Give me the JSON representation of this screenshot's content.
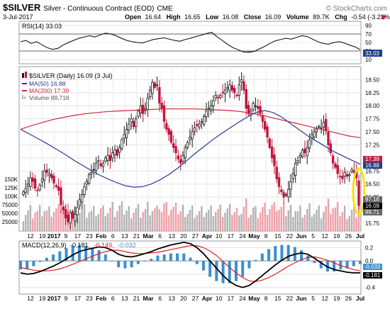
{
  "header": {
    "symbol": "$SILVER",
    "name": "Silver - Continuous Contract (EOD)",
    "exchange": "CME",
    "watermark": "© StockCharts.com",
    "date": "3-Jul-2017",
    "open_label": "Open",
    "open": "16.64",
    "high_label": "High",
    "high": "16.65",
    "low_label": "Low",
    "low": "16.08",
    "close_label": "Close",
    "close": "16.09",
    "volume_label": "Volume",
    "volume": "89.7K",
    "chg_label": "Chg",
    "chg": "-0.54 (-3.22%)"
  },
  "legend": {
    "rsi": "RSI(14) 33.03",
    "price": "$SILVER (Daily) 16.09 (3 Jul)",
    "ma50": "MA(50) 16.88",
    "ma200": "MA(200) 17.39",
    "volume": "Volume 89,716",
    "macd_a": "MACD(12,26,9)",
    "macd_b": "-0.181,",
    "macd_c": "-0.149,",
    "macd_d": "-0.032"
  },
  "colors": {
    "up": "#1a1a1a",
    "down": "#c4143c",
    "ma50": "#2a3a8f",
    "ma200": "#cc2a3a",
    "vol_up": "#b3b3b3",
    "vol_down": "#f0a0a8",
    "highlight": "#f2e418",
    "macd_line": "#000000",
    "signal_line": "#e02020",
    "histogram": "#3a8fd0",
    "rsi_dip": "#8b3a3a",
    "badge_blue": "#1e3f8a",
    "badge_red": "#c0203a",
    "badge_gray": "#666666"
  },
  "chart_data": {
    "type": "candlestick",
    "title": "$SILVER Silver - Continuous Contract (EOD) CME",
    "x_labels": [
      "12",
      "19",
      "2017",
      "9",
      "17",
      "23",
      "Feb",
      "6",
      "13",
      "21",
      "Mar",
      "6",
      "13",
      "20",
      "27",
      "Apr",
      "10",
      "17",
      "24",
      "May",
      "8",
      "15",
      "22",
      "Jun",
      "5",
      "12",
      "19",
      "26",
      "Jul"
    ],
    "price_ticks": [
      15.75,
      16.25,
      16.5,
      16.75,
      17.0,
      17.25,
      17.5,
      17.75,
      18.0,
      18.25,
      18.5
    ],
    "price_ylim": [
      15.6,
      18.75
    ],
    "volume_ticks": [
      "25000",
      "50000",
      "75000",
      "100K",
      "125K",
      "150K"
    ],
    "rsi_ticks": [
      10,
      30,
      50,
      70,
      90
    ],
    "macd_ticks": [
      0.2,
      0.0,
      -0.2,
      -0.4
    ],
    "markers": {
      "rsi": "33.03",
      "ma200": "17.39",
      "ma50": "16.88",
      "vol_a": "97.16",
      "vol_b": "16.09",
      "vol_c": "89.71",
      "macd_a": "-0.033",
      "macd_b": "-0.181"
    },
    "closes": [
      16.35,
      16.42,
      16.5,
      16.62,
      16.55,
      16.42,
      16.38,
      16.48,
      16.6,
      16.75,
      16.72,
      16.7,
      16.62,
      16.52,
      16.45,
      16.38,
      16.1,
      16.0,
      15.85,
      15.78,
      15.95,
      15.85,
      15.92,
      16.05,
      16.2,
      16.3,
      16.45,
      16.55,
      16.68,
      16.72,
      16.78,
      16.9,
      16.95,
      16.85,
      16.9,
      17.0,
      17.05,
      16.95,
      17.1,
      17.15,
      17.05,
      17.2,
      17.35,
      17.45,
      17.55,
      17.65,
      17.75,
      17.6,
      17.75,
      17.9,
      18.0,
      17.85,
      17.95,
      18.15,
      18.3,
      18.45,
      18.35,
      18.4,
      18.05,
      17.95,
      17.7,
      17.55,
      17.45,
      17.3,
      17.2,
      17.1,
      16.98,
      16.9,
      17.05,
      17.2,
      17.3,
      17.4,
      17.5,
      17.58,
      17.62,
      17.65,
      17.7,
      17.8,
      17.9,
      17.95,
      18.0,
      18.1,
      18.2,
      18.15,
      18.2,
      18.25,
      18.3,
      18.35,
      18.4,
      18.3,
      18.25,
      18.2,
      18.4,
      18.5,
      18.3,
      17.95,
      17.85,
      17.9,
      18.05,
      18.0,
      17.95,
      17.85,
      17.7,
      17.55,
      17.4,
      17.2,
      17.0,
      16.85,
      16.6,
      16.45,
      16.35,
      16.25,
      16.3,
      16.4,
      16.55,
      16.7,
      16.9,
      16.95,
      17.05,
      17.15,
      17.1,
      17.2,
      17.35,
      17.45,
      17.5,
      17.55,
      17.6,
      17.58,
      17.68,
      17.52,
      17.25,
      17.1,
      16.9,
      16.82,
      16.7,
      16.65,
      16.6,
      16.72,
      16.65,
      16.68,
      16.78,
      16.72,
      16.62,
      16.09
    ],
    "ma50": [
      17.55,
      17.46,
      17.37,
      17.28,
      17.18,
      17.08,
      16.97,
      16.87,
      16.77,
      16.68,
      16.6,
      16.53,
      16.47,
      16.44,
      16.45,
      16.5,
      16.58,
      16.68,
      16.8,
      16.94,
      17.08,
      17.21,
      17.34,
      17.46,
      17.57,
      17.68,
      17.78,
      17.87,
      17.91,
      17.87,
      17.78,
      17.66,
      17.54,
      17.42,
      17.32,
      17.22,
      17.12,
      17.04,
      16.96,
      16.88
    ],
    "ma200": [
      17.55,
      17.62,
      17.68,
      17.74,
      17.78,
      17.82,
      17.85,
      17.87,
      17.89,
      17.9,
      17.91,
      17.92,
      17.93,
      17.94,
      17.94,
      17.94,
      17.94,
      17.93,
      17.92,
      17.91,
      17.89,
      17.86,
      17.82,
      17.77,
      17.72,
      17.67,
      17.62,
      17.57,
      17.52,
      17.47,
      17.42,
      17.39
    ],
    "rsi": [
      52,
      55,
      48,
      52,
      45,
      38,
      34,
      36,
      44,
      50,
      55,
      60,
      63,
      66,
      63,
      68,
      72,
      70,
      66,
      60,
      55,
      52,
      50,
      49,
      53,
      57,
      59,
      61,
      58,
      55,
      53,
      57,
      60,
      64,
      67,
      71,
      74,
      64,
      55,
      46,
      38,
      33,
      28,
      27,
      29,
      35,
      41,
      48,
      54,
      57,
      60,
      58,
      62,
      66,
      64,
      58,
      52,
      48,
      46,
      50,
      52,
      49,
      44,
      40,
      33
    ],
    "macd": [
      -0.18,
      -0.2,
      -0.19,
      -0.16,
      -0.12,
      -0.08,
      -0.03,
      0.03,
      0.09,
      0.14,
      0.17,
      0.19,
      0.21,
      0.2,
      0.16,
      0.1,
      0.07,
      0.06,
      0.08,
      0.11,
      0.14,
      0.18,
      0.21,
      0.24,
      0.26,
      0.28,
      0.26,
      0.2,
      0.11,
      0.0,
      -0.11,
      -0.22,
      -0.31,
      -0.37,
      -0.4,
      -0.37,
      -0.3,
      -0.22,
      -0.14,
      -0.06,
      0.01,
      0.07,
      0.1,
      0.12,
      0.1,
      0.04,
      -0.03,
      -0.09,
      -0.13,
      -0.15,
      -0.17,
      -0.18,
      -0.18
    ],
    "signal": [
      -0.1,
      -0.12,
      -0.14,
      -0.15,
      -0.15,
      -0.14,
      -0.12,
      -0.09,
      -0.05,
      -0.01,
      0.03,
      0.07,
      0.11,
      0.14,
      0.16,
      0.16,
      0.14,
      0.12,
      0.11,
      0.11,
      0.12,
      0.13,
      0.15,
      0.17,
      0.19,
      0.21,
      0.23,
      0.23,
      0.2,
      0.15,
      0.08,
      -0.01,
      -0.1,
      -0.18,
      -0.25,
      -0.3,
      -0.31,
      -0.29,
      -0.25,
      -0.2,
      -0.14,
      -0.08,
      -0.03,
      0.02,
      0.05,
      0.06,
      0.04,
      0.01,
      -0.03,
      -0.07,
      -0.1,
      -0.13,
      -0.15
    ]
  }
}
